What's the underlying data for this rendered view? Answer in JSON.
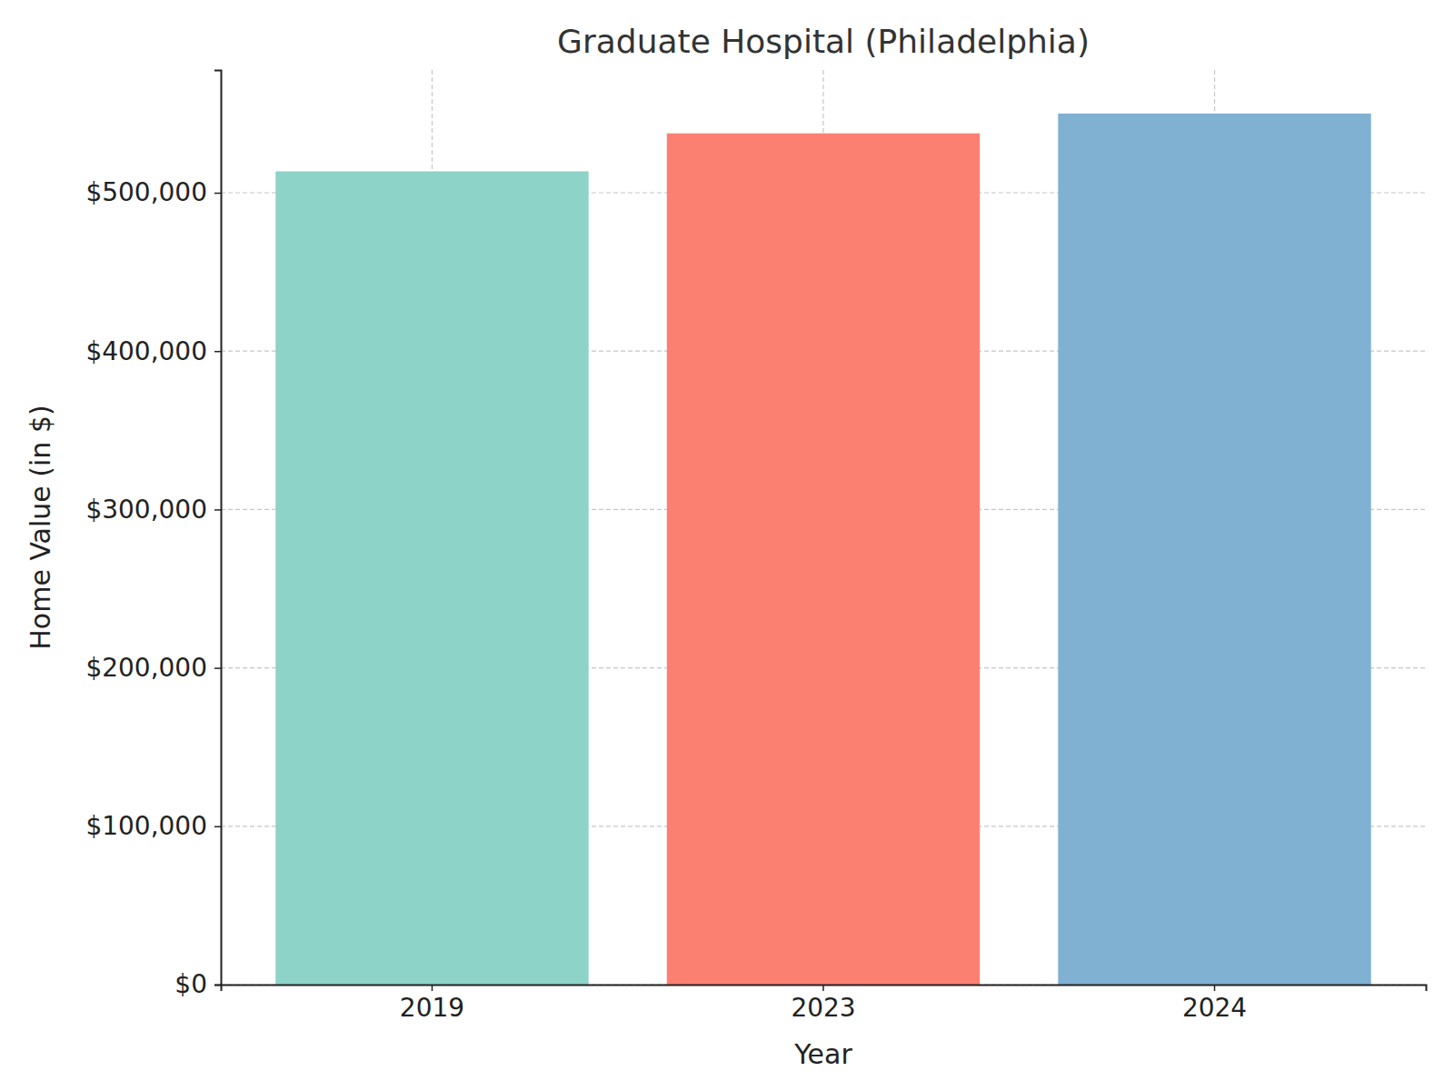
{
  "chart_data": {
    "type": "bar",
    "title": "Graduate Hospital (Philadelphia)",
    "x_label": "Year",
    "y_label": "Home Value (in $)",
    "categories": [
      "2019",
      "2023",
      "2024"
    ],
    "values": [
      513500,
      537500,
      550000
    ],
    "colors": [
      "#8dd3c7",
      "#fb8072",
      "#80b1d3"
    ],
    "ylim": [
      0,
      577500
    ],
    "yticks": [
      {
        "value": 0,
        "label": "$0"
      },
      {
        "value": 100000,
        "label": "$100,000"
      },
      {
        "value": 200000,
        "label": "$200,000"
      },
      {
        "value": 300000,
        "label": "$300,000"
      },
      {
        "value": 400000,
        "label": "$400,000"
      },
      {
        "value": 500000,
        "label": "$500,000"
      }
    ],
    "grid": true
  }
}
